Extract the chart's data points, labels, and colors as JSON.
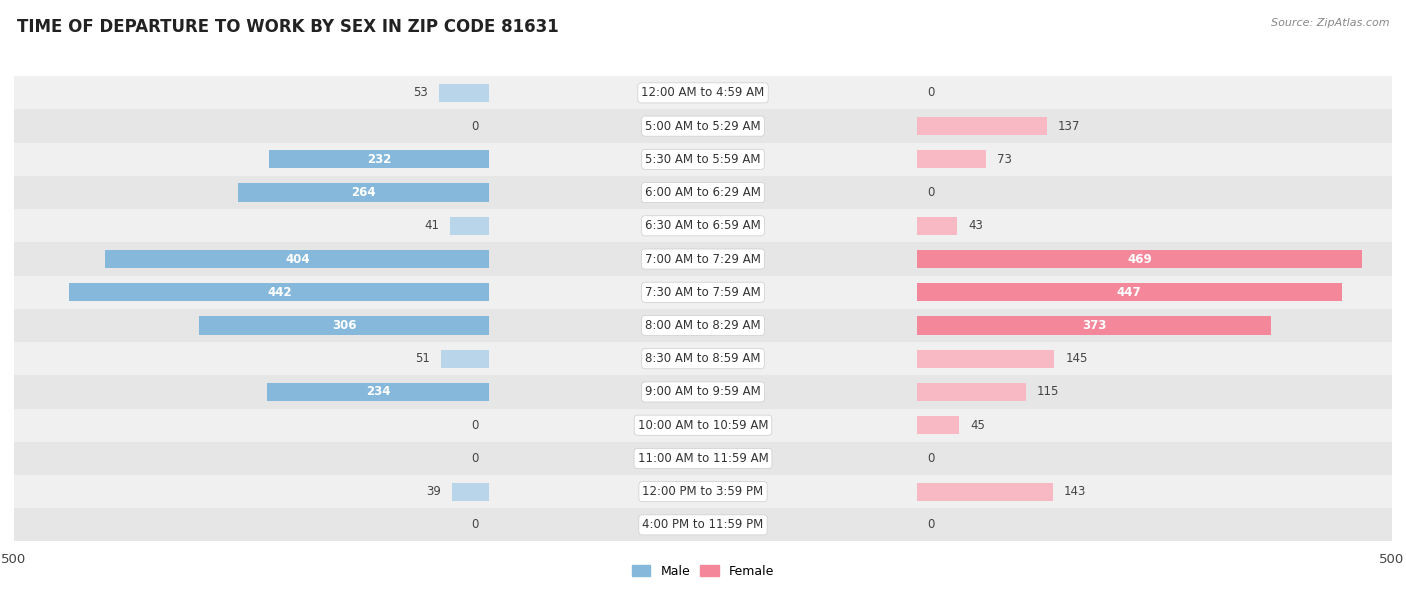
{
  "title": "TIME OF DEPARTURE TO WORK BY SEX IN ZIP CODE 81631",
  "source": "Source: ZipAtlas.com",
  "categories": [
    "12:00 AM to 4:59 AM",
    "5:00 AM to 5:29 AM",
    "5:30 AM to 5:59 AM",
    "6:00 AM to 6:29 AM",
    "6:30 AM to 6:59 AM",
    "7:00 AM to 7:29 AM",
    "7:30 AM to 7:59 AM",
    "8:00 AM to 8:29 AM",
    "8:30 AM to 8:59 AM",
    "9:00 AM to 9:59 AM",
    "10:00 AM to 10:59 AM",
    "11:00 AM to 11:59 AM",
    "12:00 PM to 3:59 PM",
    "4:00 PM to 11:59 PM"
  ],
  "male": [
    53,
    0,
    232,
    264,
    41,
    404,
    442,
    306,
    51,
    234,
    0,
    0,
    39,
    0
  ],
  "female": [
    0,
    137,
    73,
    0,
    43,
    469,
    447,
    373,
    145,
    115,
    45,
    0,
    143,
    0
  ],
  "male_color": "#85b8db",
  "female_color": "#f4879a",
  "male_color_light": "#b8d5ea",
  "female_color_light": "#f8b8c4",
  "xlim": 500,
  "title_fontsize": 12,
  "label_fontsize": 8.5,
  "value_fontsize": 8.5,
  "legend_fontsize": 9,
  "background_color": "#ffffff",
  "row_colors": [
    "#f0f0f0",
    "#e6e6e6"
  ],
  "label_threshold": 200,
  "label_color_inside": "#ffffff",
  "label_color_outside": "#555555"
}
